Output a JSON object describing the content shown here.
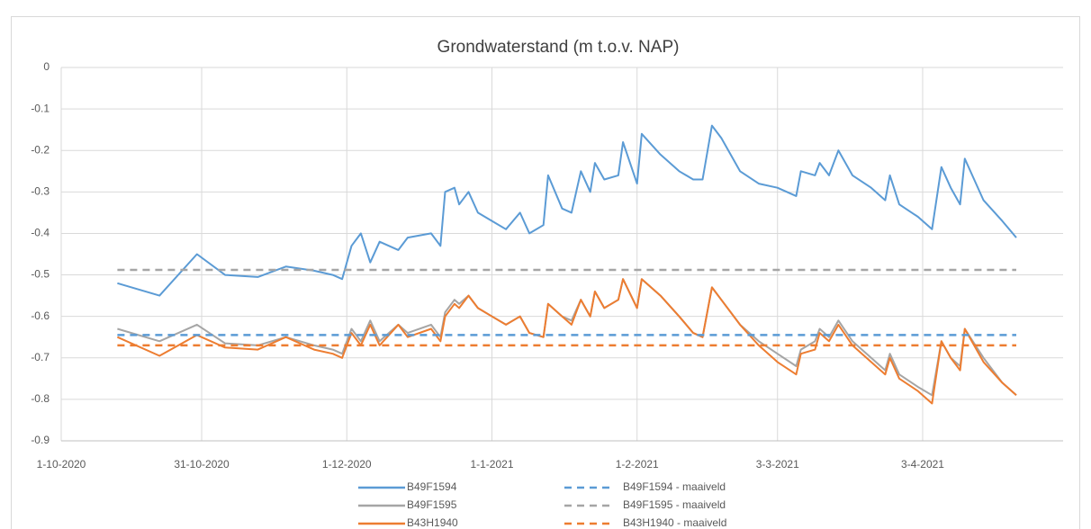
{
  "chart_data": {
    "type": "line",
    "title": "Grondwaterstand (m t.o.v. NAP)",
    "x": [
      "2020-10-13",
      "2020-10-22",
      "2020-10-30",
      "2020-11-05",
      "2020-11-12",
      "2020-11-18",
      "2020-11-24",
      "2020-11-28",
      "2020-11-30",
      "2020-12-02",
      "2020-12-04",
      "2020-12-06",
      "2020-12-08",
      "2020-12-12",
      "2020-12-14",
      "2020-12-19",
      "2020-12-21",
      "2020-12-22",
      "2020-12-24",
      "2020-12-25",
      "2020-12-27",
      "2020-12-29",
      "2021-01-01",
      "2021-01-04",
      "2021-01-07",
      "2021-01-09",
      "2021-01-12",
      "2021-01-13",
      "2021-01-16",
      "2021-01-18",
      "2021-01-20",
      "2021-01-22",
      "2021-01-23",
      "2021-01-25",
      "2021-01-28",
      "2021-01-29",
      "2021-02-01",
      "2021-02-02",
      "2021-02-06",
      "2021-02-10",
      "2021-02-13",
      "2021-02-15",
      "2021-02-17",
      "2021-02-19",
      "2021-02-23",
      "2021-02-27",
      "2021-03-03",
      "2021-03-07",
      "2021-03-08",
      "2021-03-11",
      "2021-03-12",
      "2021-03-14",
      "2021-03-16",
      "2021-03-19",
      "2021-03-23",
      "2021-03-26",
      "2021-03-27",
      "2021-03-29",
      "2021-04-02",
      "2021-04-05",
      "2021-04-07",
      "2021-04-09",
      "2021-04-11",
      "2021-04-12",
      "2021-04-16",
      "2021-04-20",
      "2021-04-23"
    ],
    "series": [
      {
        "name": "B49F1594",
        "color": "#5b9bd5",
        "dash": false,
        "values": [
          -0.52,
          -0.55,
          -0.45,
          -0.5,
          -0.505,
          -0.48,
          -0.49,
          -0.5,
          -0.51,
          -0.43,
          -0.4,
          -0.47,
          -0.42,
          -0.44,
          -0.41,
          -0.4,
          -0.43,
          -0.3,
          -0.29,
          -0.33,
          -0.3,
          -0.35,
          -0.37,
          -0.39,
          -0.35,
          -0.4,
          -0.38,
          -0.26,
          -0.34,
          -0.35,
          -0.25,
          -0.3,
          -0.23,
          -0.27,
          -0.26,
          -0.18,
          -0.28,
          -0.16,
          -0.21,
          -0.25,
          -0.27,
          -0.27,
          -0.14,
          -0.17,
          -0.25,
          -0.28,
          -0.29,
          -0.31,
          -0.25,
          -0.26,
          -0.23,
          -0.26,
          -0.2,
          -0.26,
          -0.29,
          -0.32,
          -0.26,
          -0.33,
          -0.36,
          -0.39,
          -0.24,
          -0.29,
          -0.33,
          -0.22,
          -0.32,
          -0.37,
          -0.41
        ]
      },
      {
        "name": "B49F1595",
        "color": "#a5a5a5",
        "dash": false,
        "values": [
          -0.63,
          -0.66,
          -0.62,
          -0.665,
          -0.67,
          -0.65,
          -0.67,
          -0.68,
          -0.69,
          -0.63,
          -0.66,
          -0.61,
          -0.66,
          -0.62,
          -0.64,
          -0.62,
          -0.65,
          -0.59,
          -0.56,
          -0.57,
          -0.55,
          -0.58,
          -0.6,
          -0.62,
          -0.6,
          -0.64,
          -0.65,
          -0.57,
          -0.6,
          -0.61,
          -0.56,
          -0.6,
          -0.54,
          -0.58,
          -0.56,
          -0.51,
          -0.58,
          -0.51,
          -0.55,
          -0.6,
          -0.64,
          -0.65,
          -0.53,
          -0.56,
          -0.62,
          -0.66,
          -0.69,
          -0.72,
          -0.68,
          -0.66,
          -0.63,
          -0.65,
          -0.61,
          -0.66,
          -0.7,
          -0.73,
          -0.69,
          -0.74,
          -0.77,
          -0.79,
          -0.66,
          -0.7,
          -0.72,
          -0.63,
          -0.7,
          -0.76,
          -0.79
        ]
      },
      {
        "name": "B43H1940",
        "color": "#ed7d31",
        "dash": false,
        "values": [
          -0.65,
          -0.695,
          -0.645,
          -0.675,
          -0.68,
          -0.65,
          -0.68,
          -0.69,
          -0.7,
          -0.64,
          -0.67,
          -0.62,
          -0.67,
          -0.62,
          -0.65,
          -0.63,
          -0.66,
          -0.6,
          -0.57,
          -0.58,
          -0.55,
          -0.58,
          -0.6,
          -0.62,
          -0.6,
          -0.64,
          -0.65,
          -0.57,
          -0.6,
          -0.62,
          -0.56,
          -0.6,
          -0.54,
          -0.58,
          -0.56,
          -0.51,
          -0.58,
          -0.51,
          -0.55,
          -0.6,
          -0.64,
          -0.65,
          -0.53,
          -0.56,
          -0.62,
          -0.67,
          -0.71,
          -0.74,
          -0.69,
          -0.68,
          -0.64,
          -0.66,
          -0.62,
          -0.67,
          -0.71,
          -0.74,
          -0.7,
          -0.75,
          -0.78,
          -0.81,
          -0.66,
          -0.7,
          -0.73,
          -0.63,
          -0.71,
          -0.76,
          -0.79
        ]
      },
      {
        "name": "B49F1594 - maaiveld",
        "color": "#5b9bd5",
        "dash": true,
        "x": [
          "2020-10-13",
          "2021-04-23"
        ],
        "values": [
          -0.645,
          -0.645
        ]
      },
      {
        "name": "B49F1595 - maaiveld",
        "color": "#a5a5a5",
        "dash": true,
        "x": [
          "2020-10-13",
          "2021-04-23"
        ],
        "values": [
          -0.488,
          -0.488
        ]
      },
      {
        "name": "B43H1940 - maaiveld",
        "color": "#ed7d31",
        "dash": true,
        "x": [
          "2020-10-13",
          "2021-04-23"
        ],
        "values": [
          -0.67,
          -0.67
        ]
      }
    ],
    "xlim": [
      "2020-10-01",
      "2021-05-03"
    ],
    "xticks": [
      {
        "value": "2020-10-01",
        "label": "1-10-2020"
      },
      {
        "value": "2020-10-31",
        "label": "31-10-2020"
      },
      {
        "value": "2020-12-01",
        "label": "1-12-2020"
      },
      {
        "value": "2021-01-01",
        "label": "1-1-2021"
      },
      {
        "value": "2021-02-01",
        "label": "1-2-2021"
      },
      {
        "value": "2021-03-03",
        "label": "3-3-2021"
      },
      {
        "value": "2021-04-03",
        "label": "3-4-2021"
      }
    ],
    "ylim": [
      -0.9,
      0
    ],
    "yticks": [
      0,
      -0.1,
      -0.2,
      -0.3,
      -0.4,
      -0.5,
      -0.6,
      -0.7,
      -0.8,
      -0.9
    ],
    "grid": true,
    "legend": "bottom"
  }
}
